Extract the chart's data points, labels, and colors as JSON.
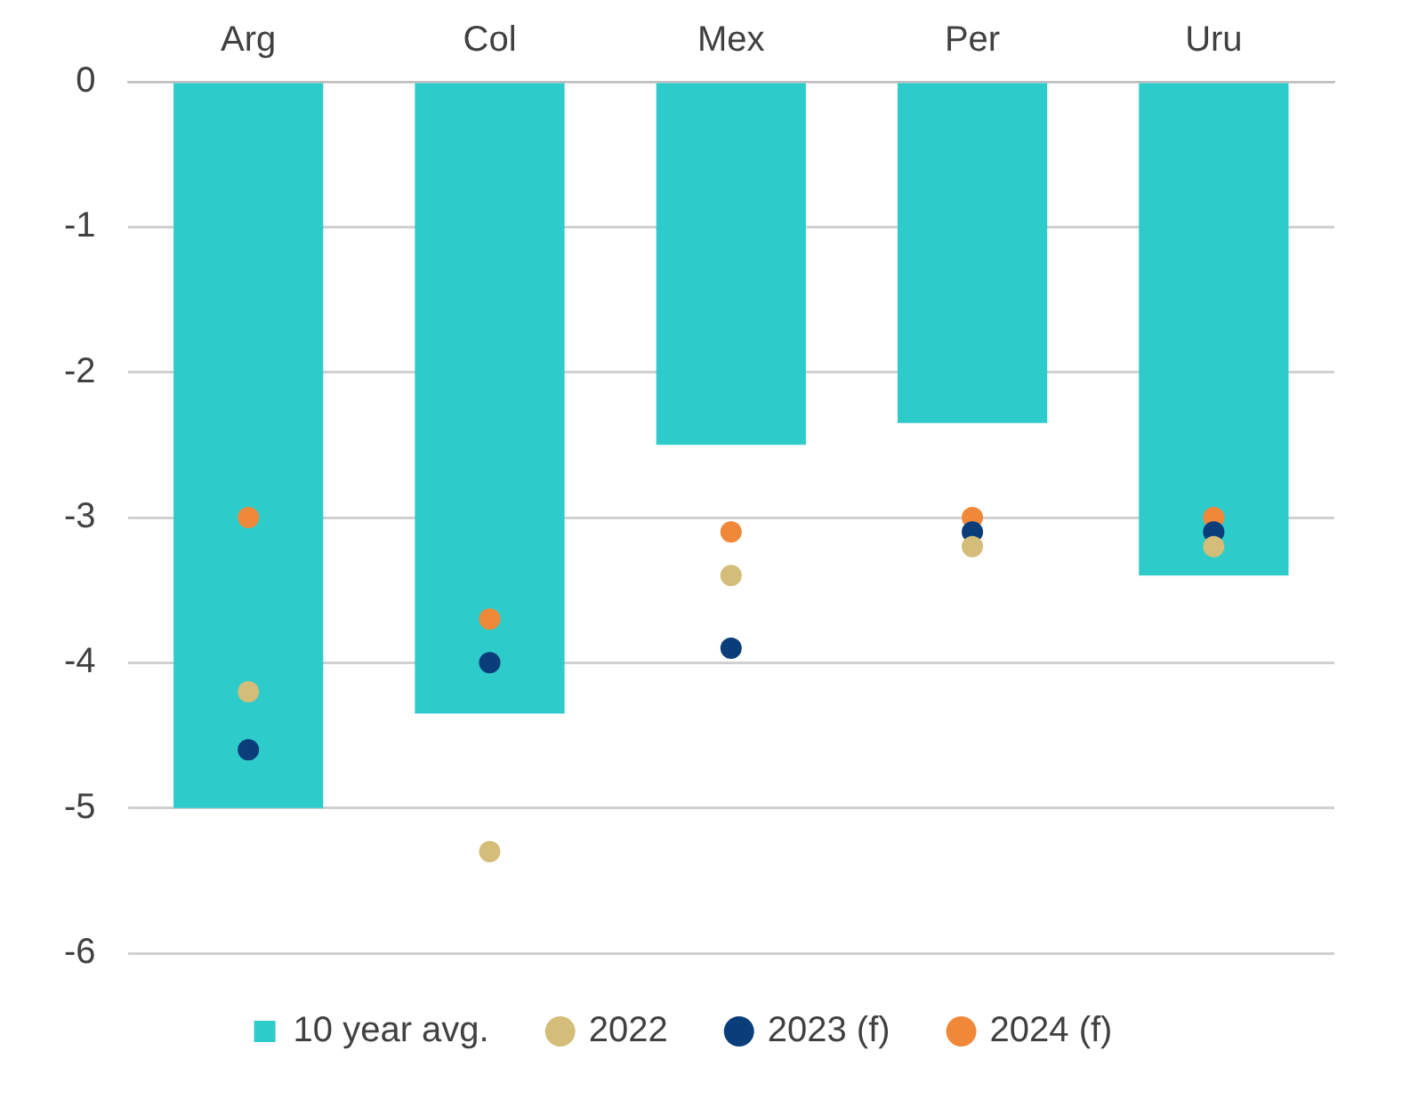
{
  "chart_data": {
    "type": "bar",
    "categories": [
      "Arg",
      "Col",
      "Mex",
      "Per",
      "Uru"
    ],
    "series": [
      {
        "name": "10 year avg.",
        "color": "#2ecbcb",
        "values": [
          -5.0,
          -4.35,
          -2.5,
          -2.35,
          -3.4
        ]
      },
      {
        "name": "2022",
        "type": "scatter",
        "color": "#d4bd78",
        "x": [
          "Arg",
          "Col",
          "Mex",
          "Per",
          "Uru"
        ],
        "values": [
          -4.2,
          -5.3,
          -3.4,
          -3.2,
          -3.2
        ]
      },
      {
        "name": "2023 (f)",
        "type": "scatter",
        "color": "#0a3d7a",
        "x": [
          "Arg",
          "Col",
          "Mex",
          "Per",
          "Uru"
        ],
        "values": [
          -4.6,
          -4.0,
          -3.9,
          -3.1,
          -3.1
        ]
      },
      {
        "name": "2024 (f)",
        "type": "scatter",
        "color": "#f0883a",
        "x": [
          "Arg",
          "Col",
          "Mex",
          "Per",
          "Uru"
        ],
        "values": [
          -3.0,
          -3.7,
          -3.1,
          -3.0,
          -3.0
        ]
      }
    ],
    "ylim": [
      -6,
      0
    ],
    "yticks": [
      0,
      -1,
      -2,
      -3,
      -4,
      -5,
      -6
    ],
    "grid": "y",
    "legend": "bottom",
    "marker": "circle"
  }
}
